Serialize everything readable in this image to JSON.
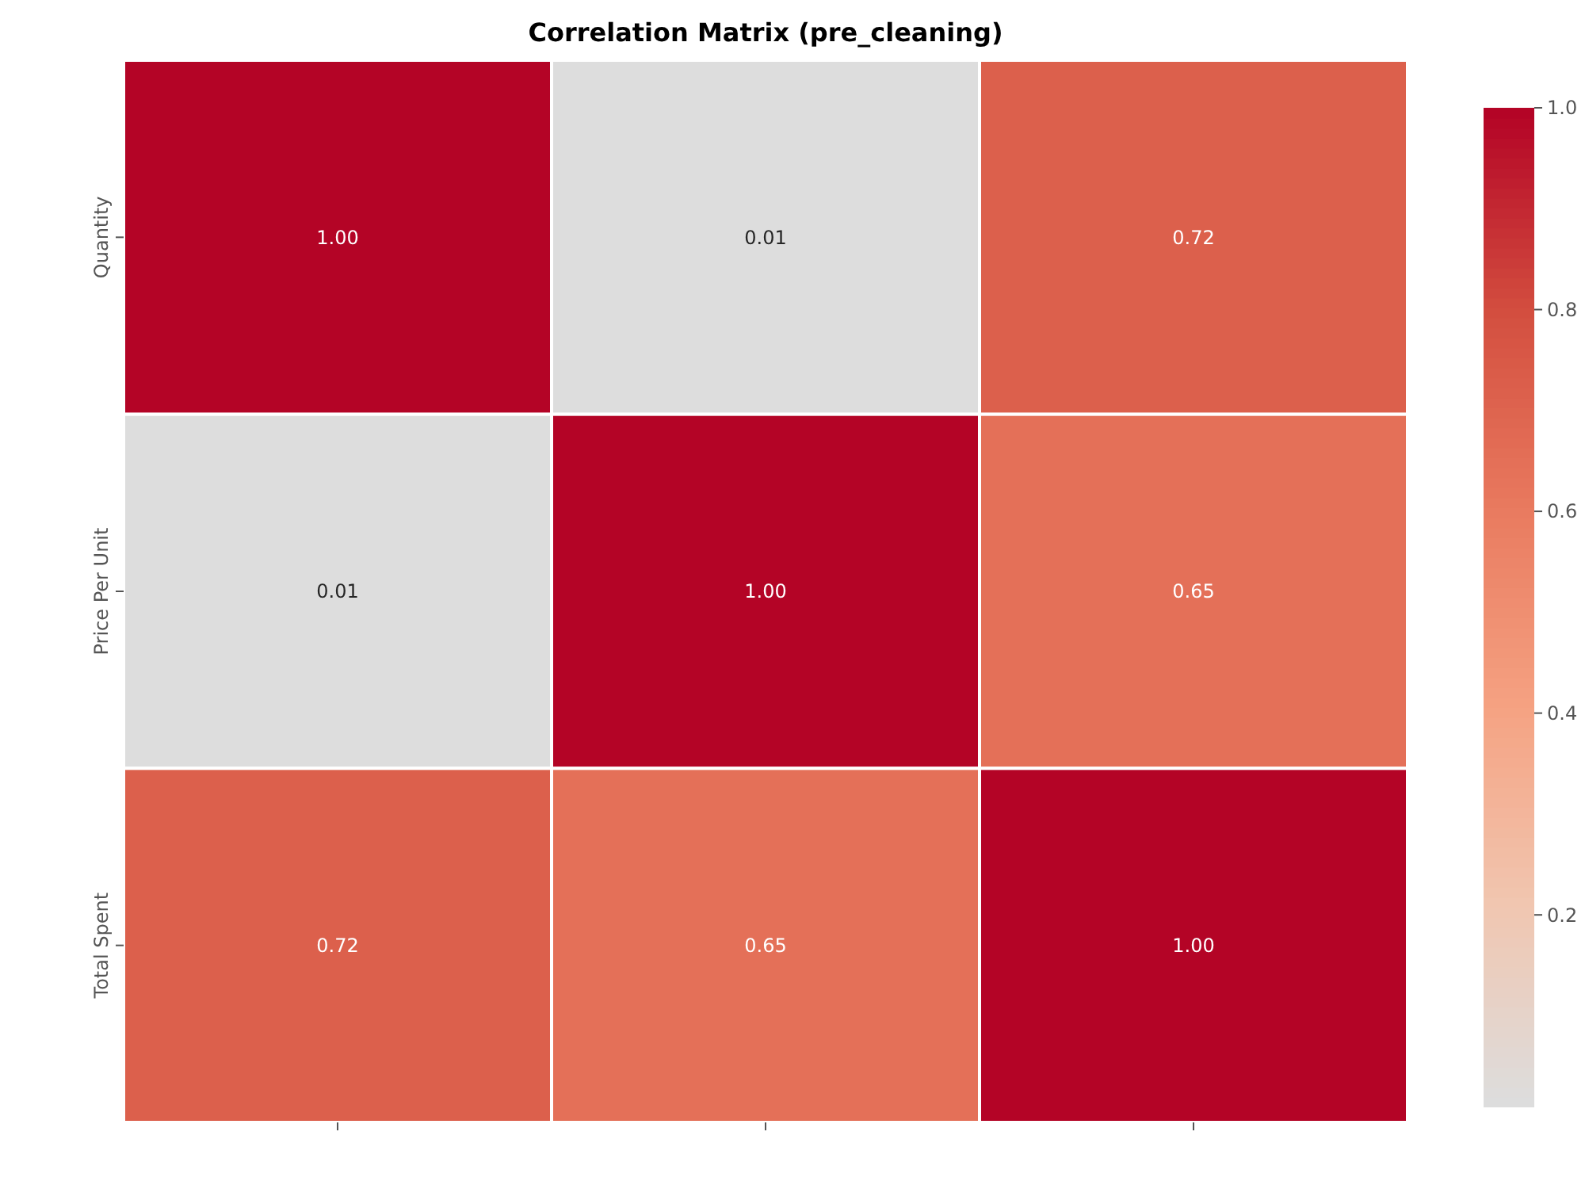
{
  "chart_data": {
    "type": "heatmap",
    "title": "Correlation Matrix (pre_cleaning)",
    "categories": [
      null,
      null,
      null
    ],
    "y_categories": [
      "Quantity",
      "Price Per Unit",
      "Total Spent"
    ],
    "cells": [
      [
        1.0,
        0.01,
        0.72
      ],
      [
        0.01,
        1.0,
        0.65
      ],
      [
        0.72,
        0.65,
        1.0
      ]
    ],
    "cell_labels": [
      [
        "1.00",
        "0.01",
        "0.72"
      ],
      [
        "0.01",
        "1.00",
        "0.65"
      ],
      [
        "0.72",
        "0.65",
        "1.00"
      ]
    ],
    "clim": [
      0.01,
      1.0
    ],
    "cticks": [
      {
        "value": 0.2,
        "label": "0.2"
      },
      {
        "value": 0.4,
        "label": "0.4"
      },
      {
        "value": 0.6,
        "label": "0.6"
      },
      {
        "value": 0.8,
        "label": "0.8"
      },
      {
        "value": 1.0,
        "label": "1.0"
      }
    ]
  }
}
